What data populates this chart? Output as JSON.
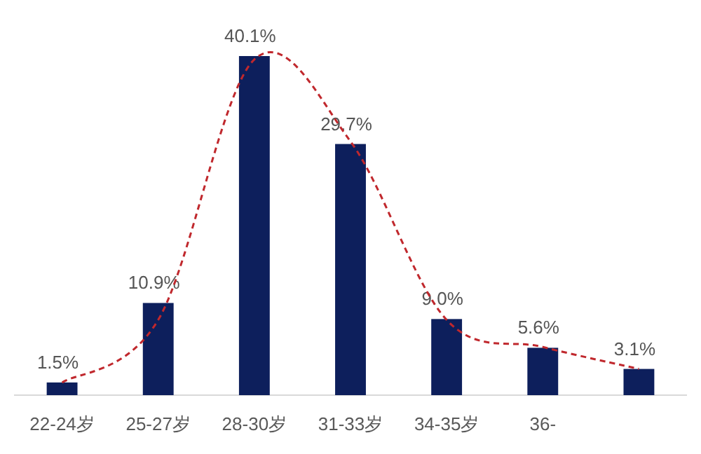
{
  "chart_data": {
    "type": "bar",
    "categories": [
      "22-24岁",
      "25-27岁",
      "28-30岁",
      "31-33岁",
      "34-35岁",
      "36-",
      null
    ],
    "series": [
      {
        "color": "#0d1f5c",
        "values": [
          1.5,
          10.9,
          40.1,
          29.7,
          9.0,
          5.6,
          3.1
        ],
        "value_labels": [
          "1.5%",
          "10.9%",
          "40.1%",
          "29.7%",
          "9.0%",
          "5.6%",
          "3.1%"
        ]
      },
      {
        "type": "line",
        "color": "#c0282d",
        "line_style": "dashed",
        "values": [
          1.5,
          8.9,
          39.7,
          30.0,
          8.9,
          5.7,
          3.1
        ]
      }
    ]
  }
}
